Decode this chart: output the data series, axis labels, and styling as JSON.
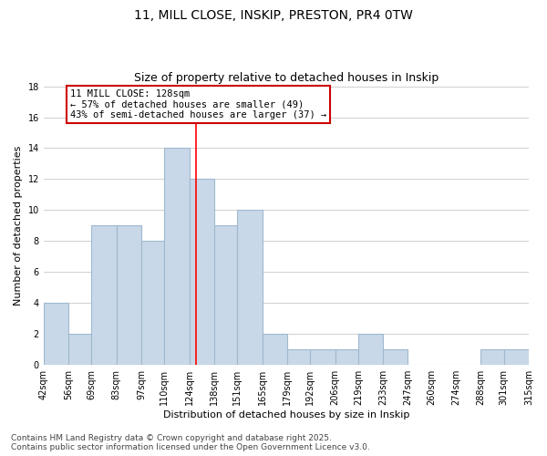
{
  "title_line1": "11, MILL CLOSE, INSKIP, PRESTON, PR4 0TW",
  "title_line2": "Size of property relative to detached houses in Inskip",
  "xlabel": "Distribution of detached houses by size in Inskip",
  "ylabel": "Number of detached properties",
  "footnote": "Contains HM Land Registry data © Crown copyright and database right 2025.\nContains public sector information licensed under the Open Government Licence v3.0.",
  "bin_edges": [
    42,
    56,
    69,
    83,
    97,
    110,
    124,
    138,
    151,
    165,
    179,
    192,
    206,
    219,
    233,
    247,
    260,
    274,
    288,
    301,
    315
  ],
  "bin_labels": [
    "42sqm",
    "56sqm",
    "69sqm",
    "83sqm",
    "97sqm",
    "110sqm",
    "124sqm",
    "138sqm",
    "151sqm",
    "165sqm",
    "179sqm",
    "192sqm",
    "206sqm",
    "219sqm",
    "233sqm",
    "247sqm",
    "260sqm",
    "274sqm",
    "288sqm",
    "301sqm",
    "315sqm"
  ],
  "counts": [
    4,
    2,
    9,
    9,
    8,
    14,
    12,
    9,
    10,
    2,
    1,
    1,
    1,
    2,
    1,
    0,
    0,
    0,
    1,
    1
  ],
  "bar_color": "#c8d8e8",
  "bar_edge_color": "#a0b8d0",
  "red_line_x": 128,
  "annotation_text": "11 MILL CLOSE: 128sqm\n← 57% of detached houses are smaller (49)\n43% of semi-detached houses are larger (37) →",
  "annotation_box_color": "#ffffff",
  "annotation_box_edge": "#cc0000",
  "ylim": [
    0,
    18
  ],
  "yticks": [
    0,
    2,
    4,
    6,
    8,
    10,
    12,
    14,
    16,
    18
  ],
  "grid_color": "#d0d0d0",
  "background_color": "#ffffff",
  "title_fontsize": 10,
  "subtitle_fontsize": 9,
  "axis_label_fontsize": 8,
  "tick_fontsize": 7,
  "annotation_fontsize": 7.5,
  "footnote_fontsize": 6.5
}
